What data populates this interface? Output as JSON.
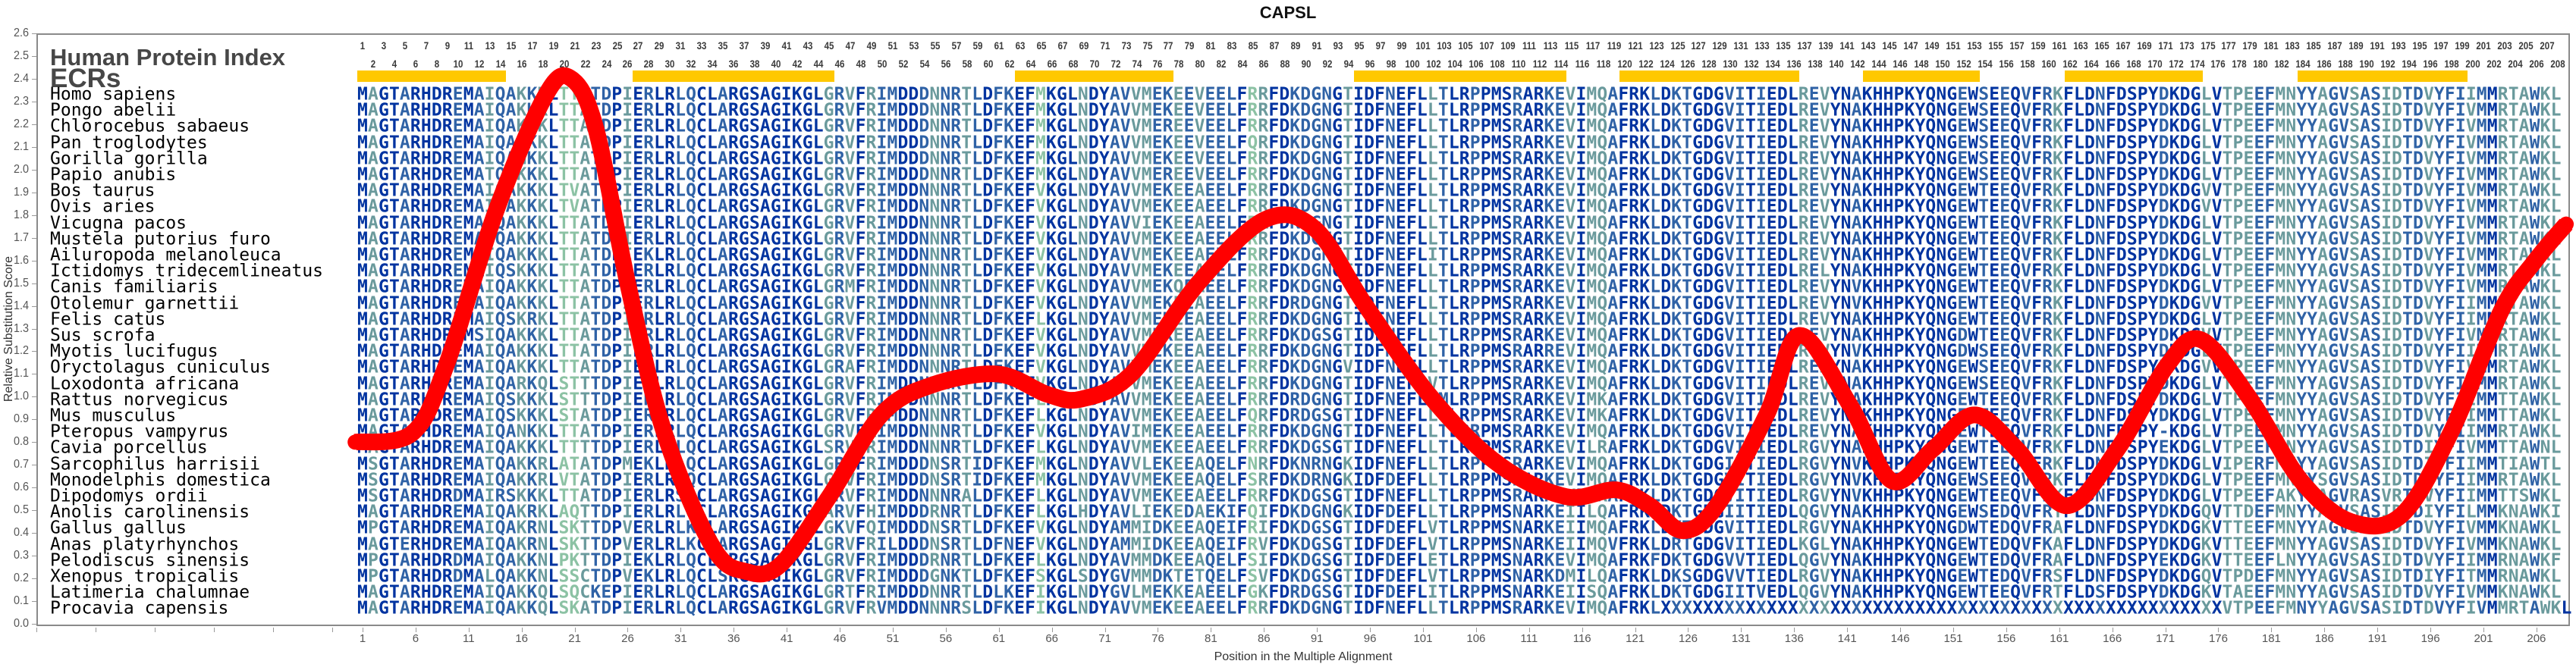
{
  "chart_data": {
    "type": "line",
    "title": "CAPSL",
    "xlabel": "Position in the Multiple Alignment",
    "ylabel": "Relative Substitution Score",
    "ylim": [
      0,
      2.6
    ],
    "yticks": [
      "0.0",
      "0.1",
      "0.2",
      "0.3",
      "0.4",
      "0.5",
      "0.6",
      "0.7",
      "0.8",
      "0.9",
      "1.0",
      "1.1",
      "1.2",
      "1.3",
      "1.4",
      "1.5",
      "1.6",
      "1.7",
      "1.8",
      "1.9",
      "2.0",
      "2.1",
      "2.2",
      "2.3",
      "2.4",
      "2.5",
      "2.6"
    ],
    "xlim": [
      1,
      208
    ],
    "xticks": [
      1,
      6,
      11,
      16,
      21,
      26,
      31,
      36,
      41,
      46,
      51,
      56,
      61,
      66,
      71,
      76,
      81,
      86,
      91,
      96,
      101,
      106,
      111,
      116,
      121,
      126,
      131,
      136,
      141,
      146,
      151,
      156,
      161,
      166,
      171,
      176,
      181,
      186,
      191,
      196,
      201,
      206
    ],
    "grid": false,
    "series": [
      {
        "name": "Relative Substitution Score",
        "color": "#FF0000",
        "x": [
          0.3,
          5.7,
          8.9,
          13.6,
          18.3,
          20.7,
          23,
          26,
          29.4,
          34,
          37.2,
          40.4,
          45,
          49.9,
          54.6,
          60.9,
          65.6,
          68.8,
          73.5,
          79.8,
          86.1,
          90.8,
          95.6,
          101.9,
          108.2,
          114.5,
          119.2,
          122.4,
          125.5,
          128.7,
          133.4,
          136.5,
          141.3,
          145.2,
          149.1,
          153,
          157,
          161.7,
          166.5,
          171.2,
          174.4,
          179,
          183.8,
          188.5,
          193.3,
          198,
          202.7,
          205.9,
          208.8
        ],
        "y": [
          0.8,
          0.84,
          1.14,
          1.82,
          2.33,
          2.4,
          2.18,
          1.5,
          0.85,
          0.34,
          0.23,
          0.26,
          0.56,
          0.92,
          1.05,
          1.1,
          1.01,
          0.99,
          1.1,
          1.5,
          1.78,
          1.74,
          1.4,
          0.99,
          0.7,
          0.56,
          0.59,
          0.52,
          0.41,
          0.52,
          0.92,
          1.27,
          0.96,
          0.63,
          0.77,
          0.92,
          0.77,
          0.52,
          0.77,
          1.14,
          1.25,
          0.99,
          0.63,
          0.45,
          0.48,
          0.85,
          1.38,
          1.6,
          1.76
        ]
      }
    ]
  },
  "alignment": {
    "human_protein_index_label": "Human Protein Index",
    "ecr_label": "ECRs",
    "length": 208,
    "ecr_ranges": [
      [
        1,
        14
      ],
      [
        27,
        45
      ],
      [
        63,
        77
      ],
      [
        95,
        114
      ],
      [
        120,
        136
      ],
      [
        143,
        153
      ],
      [
        162,
        174
      ],
      [
        184,
        199
      ]
    ],
    "conservation_colors": [
      "#0033A0",
      "#2F62A6",
      "#6A9A9C",
      "#8CC2A4"
    ],
    "ecr_color": "#FFC800",
    "species": [
      {
        "name": "Homo sapiens",
        "seq": "MAGTARHDREMAIQAKKKLTTATDPIERLRLQCLARGSAGIKGLGRVFRIMDDDNNRTLDFKEFMKGLNDYAVVMEKEEVEELFRRFDKDGNGTIDFNEFLLTLRPPMSRARKEVIMQAFRKLDKTGDGVITIEDLREVYNAKHHPKYQNGEWSEEQVFRKFLDNFDSPYDKDGLVTPEEFMNYYAGVSASIDTDVYFIIMMRTAWKL"
      },
      {
        "name": "Pongo abelii",
        "seq": "MAGTARHDREMAIQAKKKLTTATDPIERLRLQCLARGSAGIKGLGRVFRIMDDDNNRTLDFKEFMKGLNDYAVVMEKEEVEELFRRFDKDGNGTIDFNEFLLTLRPPMSRARKEVIMQAFRKLDKTGDGVITIEDLREVYNAKHHPKYQNGEWSEEQVFRKFLDNFDSPYDKDGLVTPEEFMNYYAGVSASIDTDVYFIVMMRTAWKL"
      },
      {
        "name": "Chlorocebus sabaeus",
        "seq": "MAGTARHDREMAIQAKKKLTTATDPIERLRLQCLARGSAGIKGLGRVFRIMDDDNNRTLDFKEFMKGLNDYAVVMEREEVEELFRRFDKDGNGTIDFNEFLLTLRPPMSRARKEVIMQAFRKLDKTGDGVITIEDLREVYNAKHHPKYQNGEWSEEQVFRKFLDNFDSPYDKDGLVTPEEFMNYYAGVSASIDTDVYFIVMMRTAWKL"
      },
      {
        "name": "Pan troglodytes",
        "seq": "MAGTARHDREMAIQAKKKLTTATDPIERLRLQCLARGSAGIKGLGRVFRIMDDDNNRTLDFKEFMKGLNDYAVVMEKEEVEELFQRFDKDGNGTIDFNEFLLTLRPPMSRARKEVIMQAFRKLDKTGDGVITIEDLREVYNAKHHPKYQNGEWSEEQVFRKFLDNFDSPYDKDGLVTPEEFMNYYAGVSASIDTDVYFIVMMRTAWKL"
      },
      {
        "name": "Gorilla gorilla",
        "seq": "MAGTARHDREMAIQANKKLTTATDPIERLRLQCLARGSAGIKGLGRVFRIMDDDNNRTLDFKEFMKGLNDYAVVMEKEEVEELFRRFDKDGNGTIDFNEFLLTLRPPMSRARKEVIMQAFRKLDKTGDGVITIEDLREVYNAKHHPKYQNGEWSEEQVFRKFLDNFDSPYDKDGLVTPEEFMNYYAGVSASIDTDVYFIVMMRTAWKL"
      },
      {
        "name": "Papio anubis",
        "seq": "MAGTARHDREMATQAKKKLTTATDPIERLRLQCLARGSAGIKGLGRVFRIMDDDNNRTLDFKEFMKGLNDYAVVMEREEVEELFRRFDKDGNGTIDFNEFLLTLRPPMSRARKEVIMQAFRKLDKTGDGVITIEDLREVYNAKHHPKYQNGEWSEEQVFRKFLDNFDSPYDKDGLVTPEEFMNYYAGVSASIDTDVYFIVMMRTAWKL"
      },
      {
        "name": "Bos taurus",
        "seq": "MAGTARHDREMAIQAKKKLTVATDPIERLRLQCLARGSAGIKGLGRVFRIMDDNNNRTLDFKEFVKGLNDYAVVMEKEEAEELFRRFDKDGNGTIDFNEFLLTLRPPMSRARKEVIMQAFRKLDKTGDGVITIEDLREVYNAKHHPKYQNGEWTEEQVFRKFLDNFDSPYDKDGVVTPEEFMNYYAGVSASIDTDVYFIVMMRTAWKL"
      },
      {
        "name": "Ovis aries",
        "seq": "MAGTARHDREMAIQAKKKLTVATDPIERLRLQCLARGSAGIKGLGRVFRIMDDNNNRTLDFKEFVKGLNDYAVVMEKEEAEELFRRFDKDGNGTIDFNEFLLTLRPPMSRARKEVIMQAFRKLDKTGDGVITIEDLREVYNAKHHPKYQNGEWTEEQVFRKFLDNFDSPYDKDGVVTPEEFMNYYAGVSASIDTDVYFIVMMRTAWKL"
      },
      {
        "name": "Vicugna pacos",
        "seq": "MAGTARHDREMAIQAKKKLTTATDPIERLRLQCLARGSAGIKGLGRVFRIMDDNNNRTLDFKEFVKGLNDYAVVIEKEEAEELFRRFDKDGNGTIDFNEFLLTLRPPMSRARKEVIMQAFRKLDKTGDGVITIEDLREVYNAKHHPKYQNGEWTEEQVFRKFLDNFDSPYDKDGLVTPEEFMNYYAGVSASIDTDVYFIVMMRTAWKL"
      },
      {
        "name": "Mustela putorius furo",
        "seq": "MAGTARHDREMAIQAKKKLTTATDPIERLRLQCLARGSAGIKGLGRVFRIMDDNNNRTLDFKEFVKGLNDYAVVMEKEEAEELFRRFDKDGNGTIDFNEFLLTLRPPMSRARKEVIMQAFRKLDKTGDGVITIEDLREVYNAKHHPKYQNGEWTEEQVFRKFLDNFDSPYDKDGLVTPEEFMNYYAGVSASIDTDVYFIVMMRTAWKL"
      },
      {
        "name": "Ailuropoda melanoleuca",
        "seq": "MAGTARHDREMAIQAKKKLTTATDPIEKLRLQCLARGSAGIKGLGRVFRIMDDNNNRTLDFKEFVKGLNDYAVVMEKEEAEELFRRFDKDGNGTIDFNEFLITLRPPMSRARKEVIMQAFRKLDKTGDGVITIEDLREVYNAKHHPKYQNGEWTEEQVFRKFLDNFDSPYDKDGLVTPEEFMNYYAGVSASIDTDVYFIVMMRTAWKL"
      },
      {
        "name": "Ictidomys tridecemlineatus",
        "seq": "MAGTARHDREMAIQSKKKLTTATDPIERLRLQCLARGSAGIKGLGRVFRIMDDNNNRTLDFKEFVKGLNDYAVVMEKEEAEELFRRFDKDGNGTIDFNEFLLTLRPPMSRARKEVIMQAFRKLDKTGDGVITIEDLRELYNAKHHPKYQNGEWTEEQVFRKFLDNFDSPYDKDGLVTPEEFMNYYAGVSASIDTDVYFIVMMRTAWKL"
      },
      {
        "name": "Canis familiaris",
        "seq": "MAGTARHDREMAIQAKKKLTTATDPIERLRLQCLARGSAGIKGLGRMFRIMDDNNNRTLDFKEFVKGLNDYAVVMEKQEAEELFRRFDKDGNGTIDFNEFLLTLRPPMSRARKEVIMQAFRKLDKTGDGVITIEDLREVYNVKHHPKYQNGEWTEEQVFRKFLDNFDSPYDKDGLVTPEEFMNYYAGVSASIDTDVYFIVMMRTAWKL"
      },
      {
        "name": "Otolemur garnettii",
        "seq": "MAGTARHDREMAIQAKKKLTTATDPIERLRLQCLARGSAGIKGLGRVFRIMDDNNNRTLDFKEFVKGLNDYAVVMEKEEAEELFRRFDRDGNGTIDFNEFLLTLRPPMSRARKEVIMQAFRKLDKTGDGVITIEDLREVYNVKHHPKYQNGEWTEEQVFRKFLDNFDSPYDKDGVVTPEEFMNYYAGVSASIDTDVYFIIMMRTAWKL"
      },
      {
        "name": "Felis catus",
        "seq": "MAGTARHDREMAIQSKRKLTTATDPIERLRLQCLARGSAGIKGLGRVFRIMDDNNNRTLDFKEFLKGLNDYAVVMEKEEAEELFRRFDKDGNGTIDFNEFLLTLRPPMSRARKEVIMQAFRKLDKTGDGVITIEDLREVYNAKHHPKYQNGEWTEEQVFRKFLDNFDSPYDKDGLVTPEEFMNYYAGVSASIDTDVYFIIMMRTAWKL"
      },
      {
        "name": "Sus scrofa",
        "seq": "MAGTARHDREMSIQAKKKLTTATDPIERLRLQCLARGSAGIKGLGRVFRIMDDNNNRTLDFKEFVKGLNDYAVVMEKEEAEELFRRFDKDGSGTIDFNEFLLTLRPPMSRARKEVIMQAFRKLDKTGDGVITIEDLREVYNAKHHPKYQNGDWTEEQVFRKFLDNFDSPYDKDGVVTPEEFMNYYAGVSASIDTDVYFIVMMRTAWKL"
      },
      {
        "name": "Myotis lucifugus",
        "seq": "MAGTARHDREMAIQAKKKLTTATDPIERLRLQCLARGSAGIKGLGRVFRIMDDNNNRTLDFKEFVKGLNDYAVVMEKEEAEELFRRFDKDGNGTIDFNEFLLTLRPPMSRARREVIMQAFRKLDKTGDGVITIEDLRGVYNVKHHPKYQNGDWSEEQVFRKFLDNFDSPYDKDGLVTPEEFMNYYAGVSASIDTDVYFIIMMRTAWKL"
      },
      {
        "name": "Oryctolagus cuniculus",
        "seq": "MAGTARHDREMAIQAKKKLTTATDPIERLRLQCLARGSAGIKGLGRAFRIMDDNNNRTLDFKEFVKGLNDYAVVMEKEEAEELFRRFDKDGNGVIDFNEFLLTLRPPMSRARKEVIMQAFRKLDKTGDGVITIEDLREMYNAKHHPKYQNGEWSEEQVFRKFLDNFDSPYEKDGVVTPEEFMNYYAGVSASIDTDVYFIVMMRTAWKL"
      },
      {
        "name": "Loxodonta africana",
        "seq": "MAGTARHDREMAIQARKQLSTTTDPIERLRLQCLARGSAGIKGLGRVFRIMDDNNNRTLDFKEFVKGLNDYAVVMEKEEAEELFRRFDKDGNGTIDFNEFLVTLRPPMSRARKEVIMQAFRKLDKTGDGVITIEDLREVYNAKHHPKYQNGEWSEEQVFRKFLDNFDSPYDKDGLVTPEEFMNYYAGVSASIDTDVYFIIMMRTAWKL"
      },
      {
        "name": "Rattus norvegicus",
        "seq": "MAGTARHDREMAIQSKKKLSTTTDPIERLRLQCLARGSAGIKGLGRVFRIMDDNNNRTLDFKEFLKGLNDYAVVMEKEEAEELFRRFDRDGNGTIDFNEFLVMLRPPMSRARKEVIMKAFRKLDKTGDGVITIEDLREVYNAKHHPKYQNGEWTEEQVFRKFLDNFDSPYDKDGLVTPEEFMNYYAGVSASIDTDVYFIIMMTTAWKL"
      },
      {
        "name": "Mus musculus",
        "seq": "MAGTARHDREMAIQSKKKLSTATDPIERLRLQCLARGSAGIKGLGRVFRIMDDNNNRTLDFKEFLKGLNDYAVVMEKEEAEELFQRFDRDGSGTIDFNEFLLTLRPPMSRARKEVIMKAFRKLDKTGDGVITIEDLREVYNAKHHPKYQNGEWTEEQVFRKFLDNFDSPYDKDGLVTPEEFMNYYAGVSASIDTDVYFIIMMTTAWKL"
      },
      {
        "name": "Pteropus vampyrus",
        "seq": "MAGTARHDREMAIQANKKLTTATDPIERLRLQCLARGSAGIKGLGRVFRIMDDNNNRTLDFKEFVKGLNDYAVIMEKEEAEELFRRFDKDGNGTIDFNEFLLTLRRPMSRARKEVIMQAFRKLDKTGDGVITIEDLREVYNAKHHPKYQNGEWTEEQVFRKFLDNFDSPY-KDGLVTPEEFMNYYAGVSASIDTDVYFIIMMRTAWKL"
      },
      {
        "name": "Cavia porcellus",
        "seq": "MAGTARHDREMAIQAKKKLTTTTDPIERLRLQCLARGSAGIKGLSRVFRIMDDNNNRTLDFKEFLKGLNDYAVVMEKEEAEELFRRFDKDGSGTIDFNEFLLTLRPPMSRARKEVILRAFRKLDKTGDGVITIEDLRGVYNAKHHPKYQNGEWTEEQVFRKFLDNFDSPYEKDGLVTPEEFMNYYAGVSASIDTDIYFIVMMTTAWNL"
      },
      {
        "name": "Sarcophilus harrisii",
        "seq": "MSGTARHDREMATQAKKRLATATDPMEKLRLQCLARGSAGIKGLGRVFRIMDDDNSRTIDFKEFMKGLNDYAVVLEKEEAQELFNRFDKNRNGKIDFNEFLLTLRPPMSRARKEVIMQAFRKLDKTGDGIITIEDLRGVYNVKHHPKYQNGEWTEEQIFRKFLDNFDSPYDKDGLVIPERFMNYYAGVSASIDTDIYFIIMMTIAWTL"
      },
      {
        "name": "Monodelphis domestica",
        "seq": "MSGTARHDREMAIQAKKRLVTATDPIERLRLQCLARGSAGIKGLGRVFRIMDDDNSRTIDFKEFMKGLNDYAVVMEKEEAQELFSRFDKDRNGKIDFDEFLLTLRPPMSRARKEVIMQAFRKLDKTGDGVITIEDLRGVYNVKHHPKYQNGEWSEEQVFRKFLDNFDSPYDKDGLVTPEEFMNYYSGVSASIDTDIYFIIMMRTAWKL"
      },
      {
        "name": "Dipodomys ordii",
        "seq": "MSGTARHDRDMAIRSKKKLTTATDPIERLRSQCLARGSAGIKGLGRVFRIMDDNNNRALDFKEFLKGLNDYAVVMEKEEAEELFRRFDKDGSGTIDFNEFLLTLRPPMSRARKEVIMKAFRKLDKTGDGVITIEDLRGVYNVKHHPKYQNGEWTEEQVFRKFLDNFDSPYDKDGLVTPEEFAKYCAGVRASVRTDVYFIIMMTTSWKL"
      },
      {
        "name": "Anolis carolinensis",
        "seq": "MAGTARHDREMAIQAKRKLAQTTDPIERLRLQCLARGSAGIKGLARVFHIMDDDRNRTLDFKEFLKGLHDYAVLIEKEDAEKIFQIFDKDGNGKIDFDEFLLTLRPPMSNARKEIILQAFRKLDKTGDGIITIEDLQGVYNAKHHPKYQNGEWSEDQVFRTFLDNFDSPYDKDGQVTTDEFMNYYAGVSASIDTDIYFILMMKNAWKI"
      },
      {
        "name": "Gallus gallus",
        "seq": "MPGTARHDREMAIQAKRNLSKTTDPVERLRLKCLARGSAGIKGLGKVFQIMDDDNSRTLDFKEFVKGLNDYAMMIDKEEAQEIFRIFDKDGSGTIDFDEFLVTLRPPMSNARKEIIMQAFRKLDKTGDGVITIEDLRGVYNAKHHPKYQNGDWTEDQVFRAFLDNFDSPYDKDGKVTTEEFMNYYAGVSASIDTDVYFIVMMKNAWKL"
      },
      {
        "name": "Anas platyrhynchos",
        "seq": "MAGTERHDREMAIQAKRNLSKTTDPVERLRLKCLARGSAGIKGLGRVFRILDDDNSRTLDFNEFVKGLNDYAMMIDKEEAQEIFRVFDKDGSGTIDFDEFLVTLRPPMSNARKEIIMQVFRKLDRTGDGVITIEDLKGLYNAKHHPKYQNGEWTEDQVFKAFLDNFDSPYDKDGKVTTEEFMNYYAGVSASIDTDVYFIVMMKNAWKL"
      },
      {
        "name": "Pelodiscus sinensis",
        "seq": "MPGTARHDRDMAIQAKKNLPKTTDPIEKLRLQCLARGSAGIKGLGRVFRIMDDDRNRTLDFKEFLKGLNDYAVMMDKEEAQELFSIFDKDGSGTIDFDEFLETLRPPMSNARKEVIMQAFRKFDKTGDGVVTIEDLQGVYNAKHHPKYQNGEWTEDQVFRAFLDNFDSPYEKDGKVTTEEFLNYYAGVSASIDTDVYFIIMMRNAWKF"
      },
      {
        "name": "Xenopus tropicalis",
        "seq": "MPGTARHDRDMALQAKKNLSSCTDPVEKLRLQCLSRGSAGIKGLGRVFRIMDDDGNKTLDFKEFSKGLSDYGVMMDKTETQELFSVFDKDGSGTIDFDEFLVTLRPPMSNARKDMILQAFRKLDKSGDGVVTIEDLRGVYNAKHHPKYQNGEWTEDQVFRSFLDNFDSPYDKDGQVTPDEFMNYYAGVSASIDTDIYFITMMRNAWKL"
      },
      {
        "name": "Latimeria chalumnae",
        "seq": "MAGTARHDREMAIQAKKQLSQCKEPIERLRLQCLARGSAGIKGLGRTFRIMDDDNNRTLDLKEFIKGLNDYGVLMEKKEAEELFGKFDRDGSGTIDFDEFLITLRPPMSNARKEIISQAFRKLDKTGDGIITVEDLQGVYNAKHHPKYQNGEWTEEQVFRTFLDSFDSPYDKDGKVTAEEFMNYYAGVSASIDTDVYFIVMMKNAWKL"
      },
      {
        "name": "Procavia capensis",
        "seq": "MAGTARHDREMAIQAKKQLSKATDPIERLRLQCLARGSAGIKGLGRVFRVMDDNNNRSLDFKEFIKGLNDYAVVMEKEEAEELFRRFDKDGNGTIDFNEFLLTLRPPMSRARKEVIMQAFRKLXXXXXXXXXXXXXXXXXXXXXXXXXXXXXXXXXXXXXXXXXXXXXXXXXXXXXVTPEEFMNYYAGVSASIDTDVYFIVMMRTAWKL"
      }
    ]
  }
}
